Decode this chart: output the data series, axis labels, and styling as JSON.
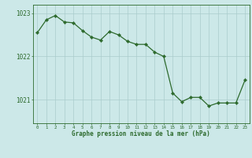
{
  "hours": [
    0,
    1,
    2,
    3,
    4,
    5,
    6,
    7,
    8,
    9,
    10,
    11,
    12,
    13,
    14,
    15,
    16,
    17,
    18,
    19,
    20,
    21,
    22,
    23
  ],
  "pressure": [
    1022.55,
    1022.85,
    1022.95,
    1022.8,
    1022.78,
    1022.6,
    1022.45,
    1022.38,
    1022.58,
    1022.5,
    1022.35,
    1022.28,
    1022.28,
    1022.1,
    1022.0,
    1021.15,
    1020.95,
    1021.05,
    1021.05,
    1020.85,
    1020.92,
    1020.92,
    1020.92,
    1021.45
  ],
  "line_color": "#2d6a2d",
  "marker_color": "#2d6a2d",
  "bg_color": "#cce8e8",
  "grid_color": "#aacccc",
  "axis_color": "#2d6a2d",
  "ylabel_ticks": [
    1021,
    1022,
    1023
  ],
  "xlabel": "Graphe pression niveau de la mer (hPa)",
  "xlabel_color": "#2d6a2d",
  "ylim": [
    1020.45,
    1023.2
  ],
  "xlim": [
    -0.5,
    23.5
  ]
}
